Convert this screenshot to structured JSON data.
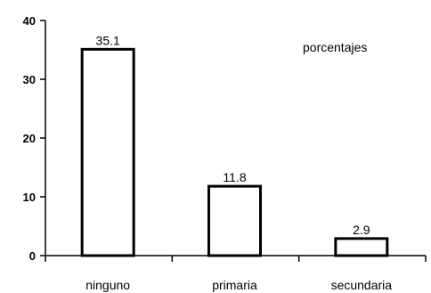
{
  "chart_data": {
    "type": "bar",
    "categories": [
      "ninguno",
      "primaria",
      "secundaria"
    ],
    "values": [
      35.1,
      11.8,
      2.9
    ],
    "value_labels": [
      "35.1",
      "11.8",
      "2.9"
    ],
    "title": "",
    "xlabel": "",
    "ylabel": "",
    "note": "porcentajes",
    "ylim": [
      0,
      40
    ],
    "yticks": [
      0,
      10,
      20,
      30,
      40
    ],
    "grid": false,
    "bar_fill": "#ffffff",
    "bar_stroke": "#000000"
  }
}
